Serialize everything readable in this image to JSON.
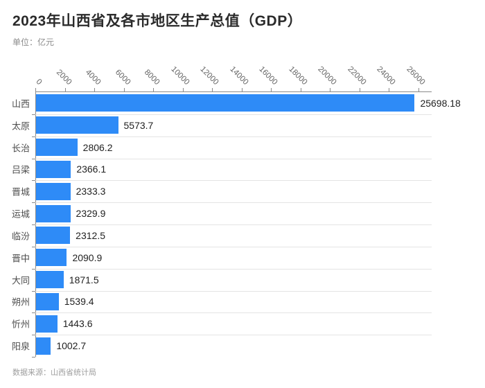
{
  "header": {
    "title": "2023年山西省及各市地区生产总值（GDP）",
    "subtitle": "单位：亿元"
  },
  "footer": {
    "source": "数据来源：山西省统计局"
  },
  "chart_data": {
    "type": "bar",
    "orientation": "horizontal",
    "title": "2023年山西省及各市地区生产总值（GDP）",
    "unit_label": "单位：亿元",
    "source_note": "数据来源：山西省统计局",
    "categories": [
      "山西",
      "太原",
      "长治",
      "吕梁",
      "晋城",
      "运城",
      "临汾",
      "晋中",
      "大同",
      "朔州",
      "忻州",
      "阳泉"
    ],
    "values": [
      25698.18,
      5573.7,
      2806.2,
      2366.1,
      2333.3,
      2329.9,
      2312.5,
      2090.9,
      1871.5,
      1539.4,
      1443.6,
      1002.7
    ],
    "value_labels": [
      "25698.18",
      "5573.7",
      "2806.2",
      "2366.1",
      "2333.3",
      "2329.9",
      "2312.5",
      "2090.9",
      "1871.5",
      "1539.4",
      "1443.6",
      "1002.7"
    ],
    "x_axis": {
      "position": "top",
      "ticks": [
        0,
        2000,
        4000,
        6000,
        8000,
        10000,
        12000,
        14000,
        16000,
        18000,
        20000,
        22000,
        24000,
        26000
      ],
      "tick_interval": 2000,
      "max": 26900,
      "tick_label_rotation_deg": 45
    },
    "grid": "horizontal row separators only",
    "legend": "none",
    "bar_color": "#2E8BF7",
    "colors": {
      "title": "#2b2b2b",
      "subtitle": "#8c8c8c",
      "axis": "#8a8a8a",
      "gridline": "#e4e4e4",
      "tick_label": "#666666",
      "category_label": "#4d4d4d",
      "value_label": "#1f1f1f",
      "source": "#9e9e9e",
      "background": "#ffffff"
    }
  }
}
